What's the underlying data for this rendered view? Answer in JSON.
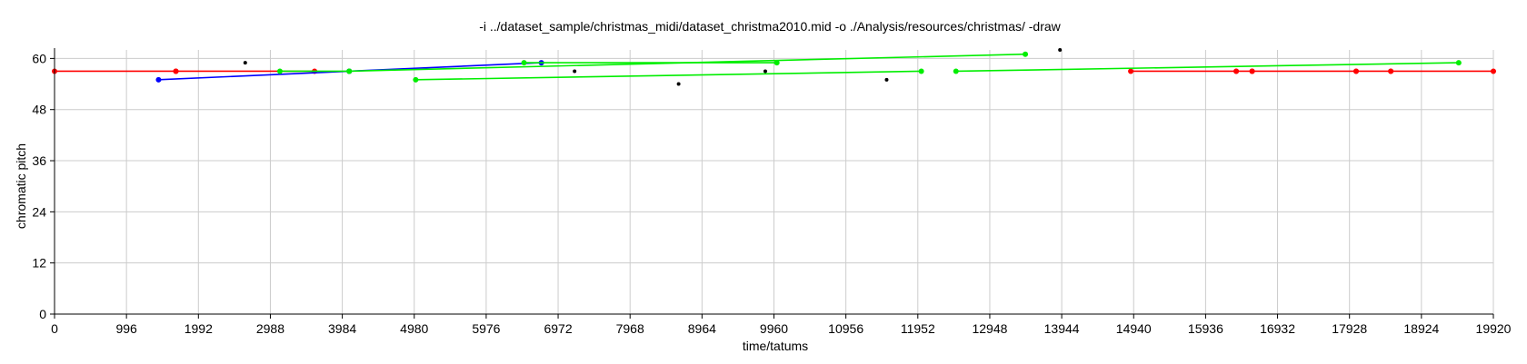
{
  "chart_data": {
    "type": "line",
    "title": "-i ../dataset_sample/christmas_midi/dataset_christma2010.mid -o ./Analysis/resources/christmas/ -draw",
    "xlabel": "time/tatums",
    "ylabel": "chromatic pitch",
    "xlim": [
      0,
      19920
    ],
    "ylim": [
      0,
      62
    ],
    "xticks": [
      0,
      996,
      1992,
      2988,
      3984,
      4980,
      5976,
      6972,
      7968,
      8964,
      9960,
      10956,
      11952,
      12948,
      13944,
      14940,
      15936,
      16932,
      17928,
      18924,
      19920
    ],
    "yticks": [
      0,
      12,
      24,
      36,
      48,
      60
    ],
    "grid": true,
    "series": [
      {
        "color": "#ff0000",
        "segments": [
          [
            [
              0,
              57
            ],
            [
              1680,
              57
            ]
          ],
          [
            [
              1680,
              57
            ],
            [
              3600,
              57
            ]
          ],
          [
            [
              14900,
              57
            ],
            [
              16360,
              57
            ]
          ],
          [
            [
              16360,
              57
            ],
            [
              16580,
              57
            ]
          ],
          [
            [
              16580,
              57
            ],
            [
              18020,
              57
            ]
          ],
          [
            [
              18020,
              57
            ],
            [
              18500,
              57
            ]
          ],
          [
            [
              18500,
              57
            ],
            [
              19920,
              57
            ]
          ]
        ]
      },
      {
        "color": "#0000ff",
        "segments": [
          [
            [
              1440,
              55
            ],
            [
              4080,
              57
            ]
          ],
          [
            [
              4080,
              57
            ],
            [
              6740,
              59
            ]
          ]
        ]
      },
      {
        "color": "#00ee00",
        "segments": [
          [
            [
              3120,
              57
            ],
            [
              4080,
              57
            ]
          ],
          [
            [
              6500,
              59
            ],
            [
              10000,
              59
            ]
          ],
          [
            [
              5000,
              55
            ],
            [
              12000,
              57
            ]
          ],
          [
            [
              4080,
              57
            ],
            [
              13440,
              61
            ]
          ],
          [
            [
              12480,
              57
            ],
            [
              19440,
              59
            ]
          ]
        ]
      },
      {
        "color": "#000000",
        "points": [
          [
            2640,
            59
          ],
          [
            7200,
            57
          ],
          [
            8640,
            54
          ],
          [
            9840,
            57
          ],
          [
            11520,
            55
          ],
          [
            13920,
            62
          ]
        ]
      }
    ]
  }
}
